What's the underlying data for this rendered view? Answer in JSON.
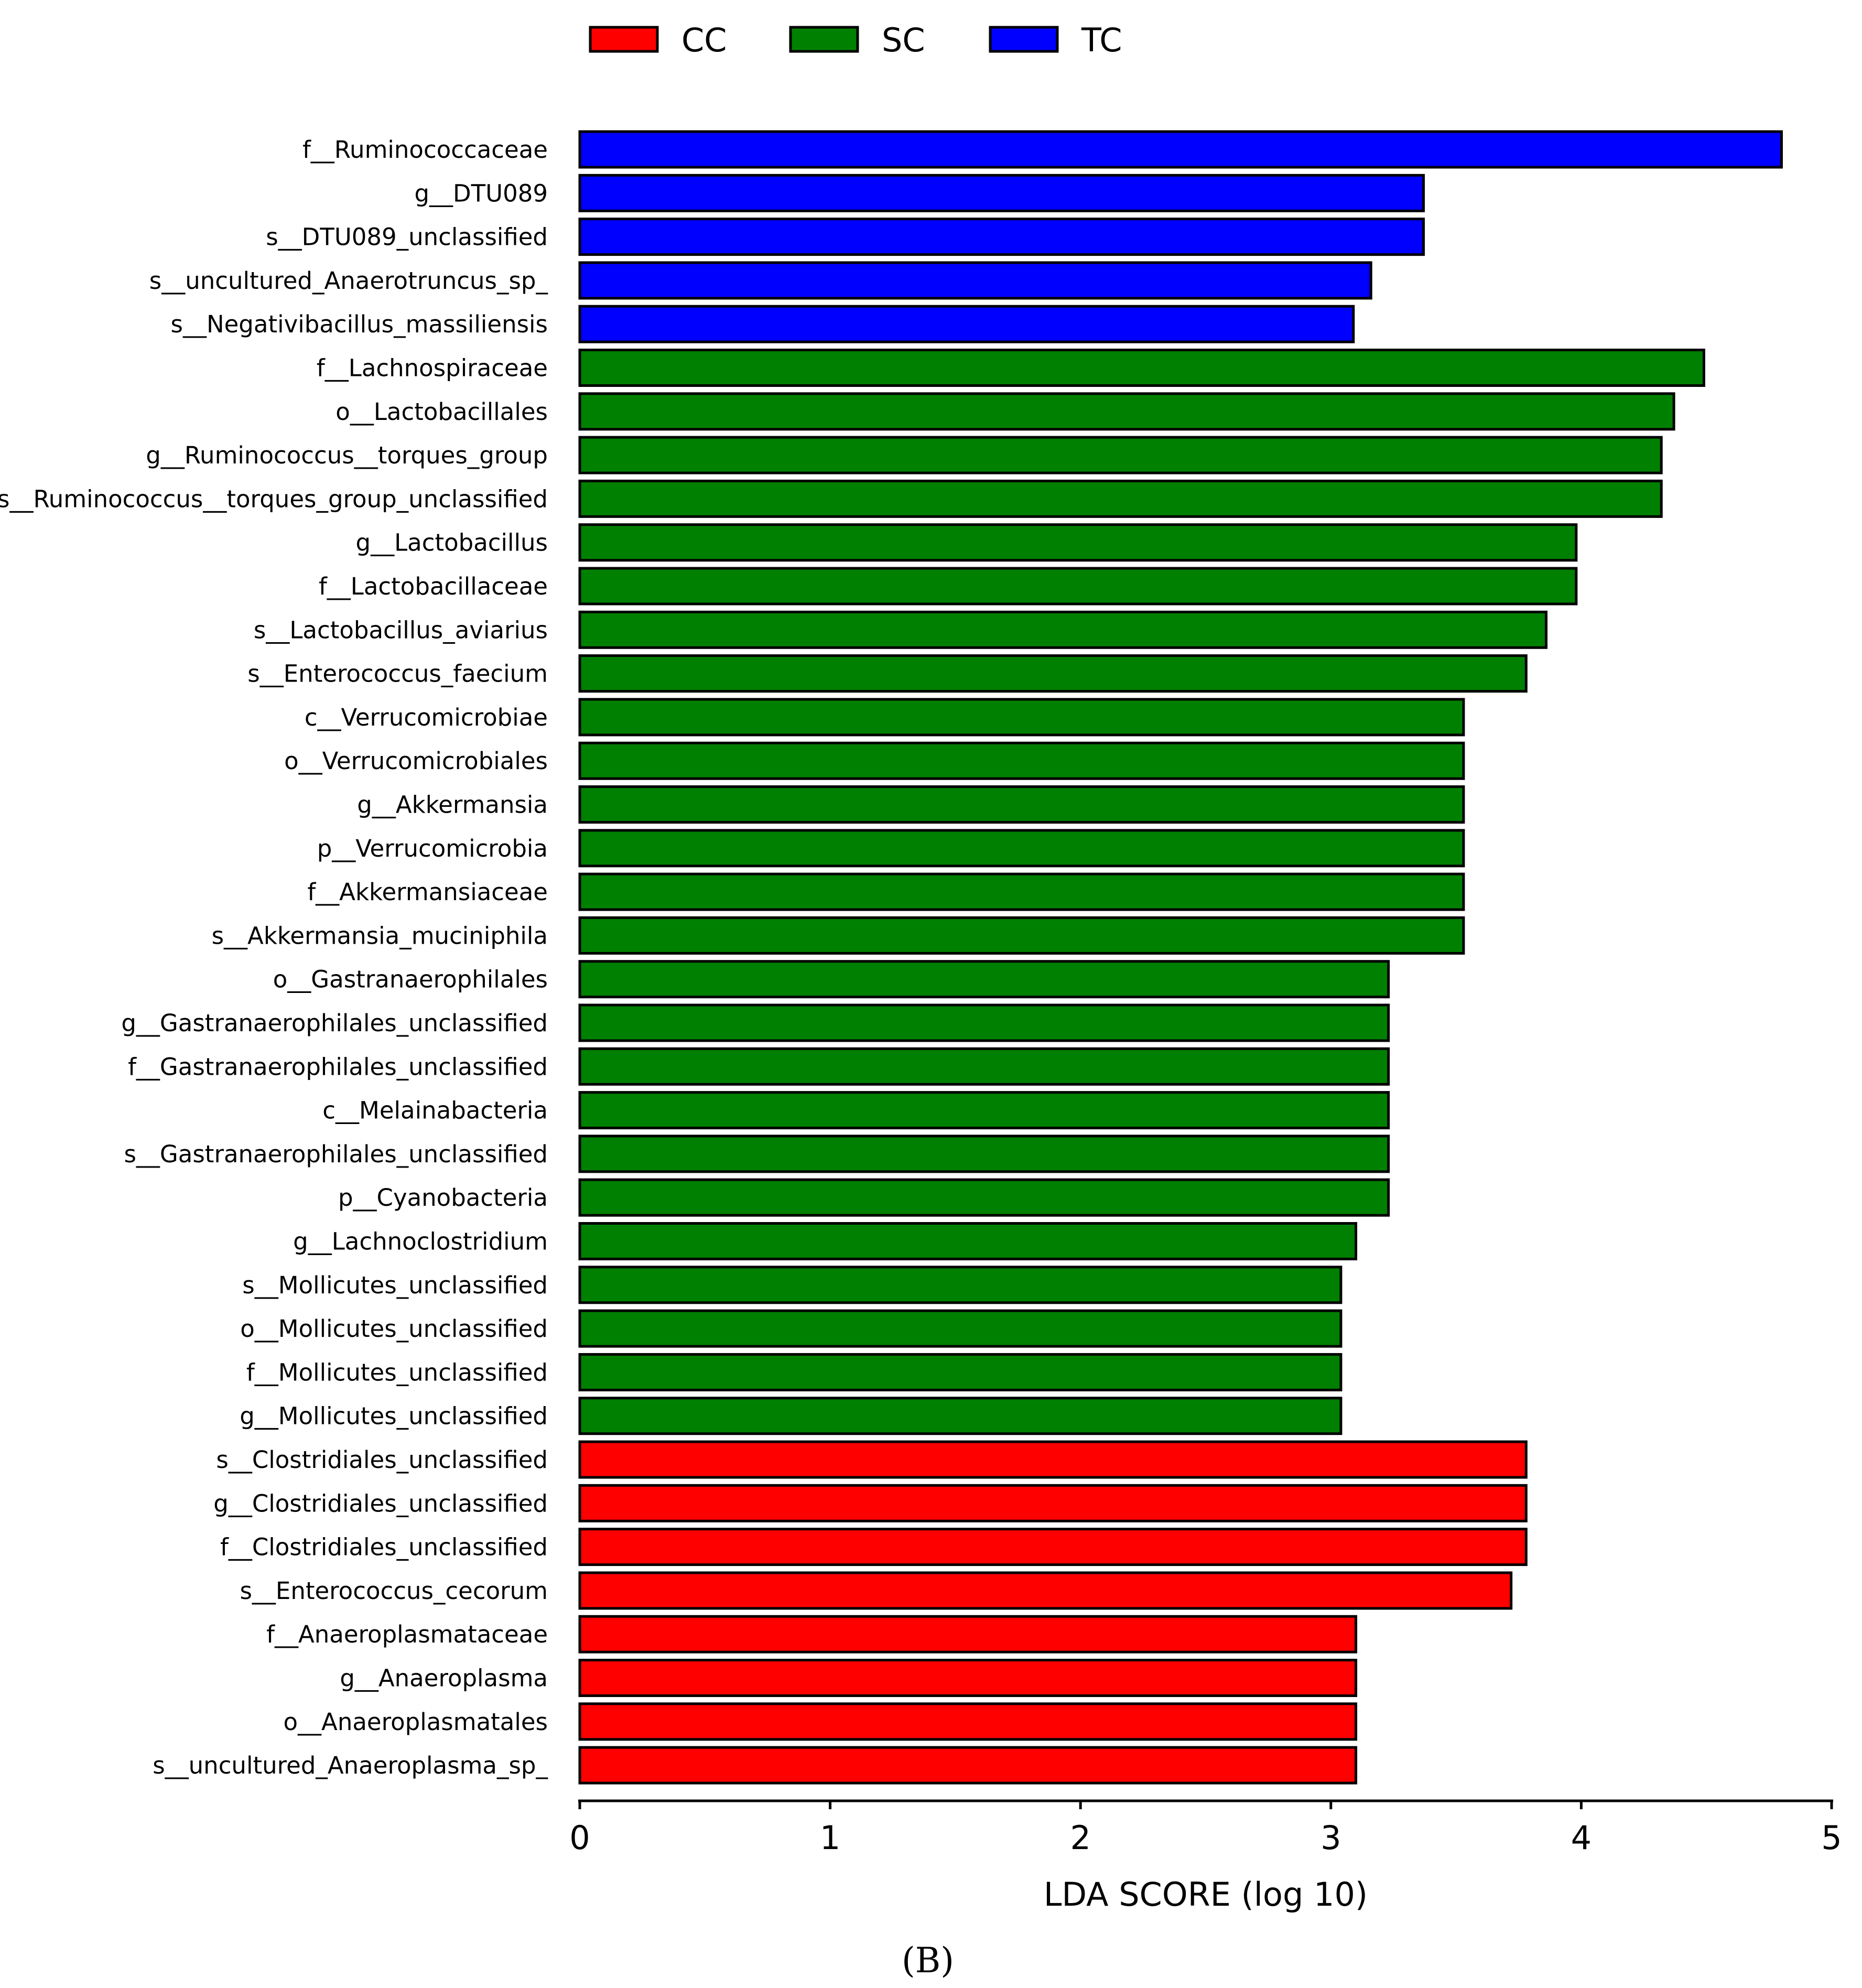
{
  "colors": {
    "CC": "#ff0000",
    "SC": "#008000",
    "TC": "#0000ff",
    "bar_edge": "#000000"
  },
  "legend": [
    "CC",
    "SC",
    "TC"
  ],
  "panel_label": "(B)",
  "chart_data": {
    "type": "bar",
    "orientation": "horizontal",
    "title": "",
    "xlabel": "LDA SCORE (log 10)",
    "ylabel": "",
    "xlim": [
      0,
      5
    ],
    "xticks": [
      "0",
      "1",
      "2",
      "3",
      "4",
      "5"
    ],
    "legend_placement": "top",
    "grid": false,
    "categories": [
      "f__Ruminococcaceae",
      "g__DTU089",
      "s__DTU089_unclassified",
      "s__uncultured_Anaerotruncus_sp_",
      "s__Negativibacillus_massiliensis",
      "f__Lachnospiraceae",
      "o__Lactobacillales",
      "g__Ruminococcus__torques_group",
      "s__Ruminococcus__torques_group_unclassified",
      "g__Lactobacillus",
      "f__Lactobacillaceae",
      "s__Lactobacillus_aviarius",
      "s__Enterococcus_faecium",
      "c__Verrucomicrobiae",
      "o__Verrucomicrobiales",
      "g__Akkermansia",
      "p__Verrucomicrobia",
      "f__Akkermansiaceae",
      "s__Akkermansia_muciniphila",
      "o__Gastranaerophilales",
      "g__Gastranaerophilales_unclassified",
      "f__Gastranaerophilales_unclassified",
      "c__Melainabacteria",
      "s__Gastranaerophilales_unclassified",
      "p__Cyanobacteria",
      "g__Lachnoclostridium",
      "s__Mollicutes_unclassified",
      "o__Mollicutes_unclassified",
      "f__Mollicutes_unclassified",
      "g__Mollicutes_unclassified",
      "s__Clostridiales_unclassified",
      "g__Clostridiales_unclassified",
      "f__Clostridiales_unclassified",
      "s__Enterococcus_cecorum",
      "f__Anaeroplasmataceae",
      "g__Anaeroplasma",
      "o__Anaeroplasmatales",
      "s__uncultured_Anaeroplasma_sp_"
    ],
    "values": [
      4.8,
      3.37,
      3.37,
      3.16,
      3.09,
      4.49,
      4.37,
      4.32,
      4.32,
      3.98,
      3.98,
      3.86,
      3.78,
      3.53,
      3.53,
      3.53,
      3.53,
      3.53,
      3.53,
      3.23,
      3.23,
      3.23,
      3.23,
      3.23,
      3.23,
      3.1,
      3.04,
      3.04,
      3.04,
      3.04,
      3.78,
      3.78,
      3.78,
      3.72,
      3.1,
      3.1,
      3.1,
      3.1
    ],
    "groups": [
      "TC",
      "TC",
      "TC",
      "TC",
      "TC",
      "SC",
      "SC",
      "SC",
      "SC",
      "SC",
      "SC",
      "SC",
      "SC",
      "SC",
      "SC",
      "SC",
      "SC",
      "SC",
      "SC",
      "SC",
      "SC",
      "SC",
      "SC",
      "SC",
      "SC",
      "SC",
      "SC",
      "SC",
      "SC",
      "SC",
      "CC",
      "CC",
      "CC",
      "CC",
      "CC",
      "CC",
      "CC",
      "CC"
    ]
  }
}
